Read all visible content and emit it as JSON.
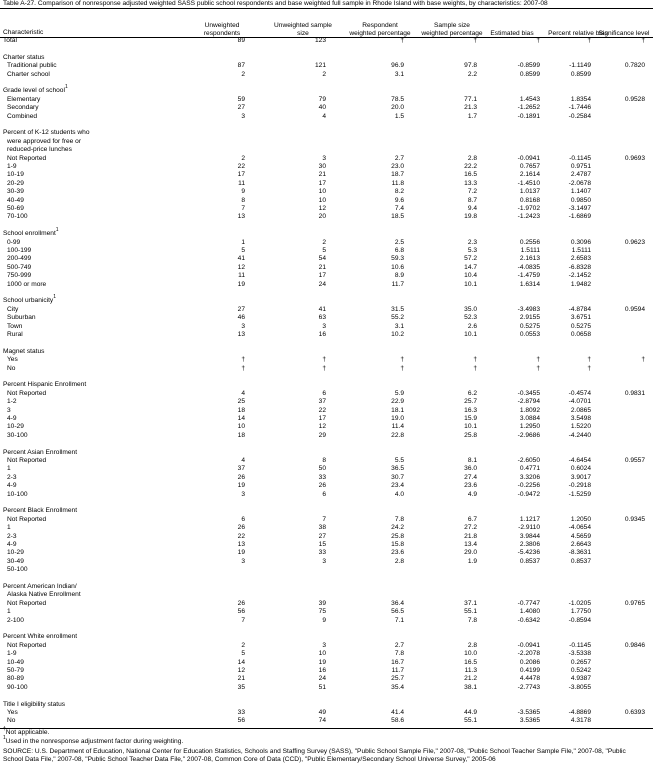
{
  "title": "Table A-27. Comparison of nonresponse adjusted weighted SASS public school respondents and base weighted full sample in Rhode Island with base weights, by characteristics: 2007-08",
  "columns": [
    "Characteristic",
    "Unweighted respondents",
    "Unweighted sample size",
    "Respondent weighted percentage",
    "Sample size weighted percentage",
    "Estimated bias",
    "Percent relative bias",
    "Significance level"
  ],
  "total": {
    "label": "Total",
    "values": [
      "89",
      "123",
      "†",
      "†",
      "†",
      "†",
      "†"
    ]
  },
  "sections": [
    {
      "label": [
        "Charter status"
      ],
      "rows": [
        {
          "label": "Traditional public",
          "values": [
            "87",
            "121",
            "96.9",
            "97.8",
            "-0.8599",
            "-1.1149",
            "0.7820"
          ]
        },
        {
          "label": "Charter school",
          "values": [
            "2",
            "2",
            "3.1",
            "2.2",
            "0.8599",
            "0.8599"
          ]
        }
      ]
    },
    {
      "label": [
        "Grade level of school"
      ],
      "sup": "1",
      "rows": [
        {
          "label": "Elementary",
          "values": [
            "59",
            "79",
            "78.5",
            "77.1",
            "1.4543",
            "1.8354",
            "0.9528"
          ]
        },
        {
          "label": "Secondary",
          "values": [
            "27",
            "40",
            "20.0",
            "21.3",
            "-1.2652",
            "-1.7446"
          ]
        },
        {
          "label": "Combined",
          "values": [
            "3",
            "4",
            "1.5",
            "1.7",
            "-0.1891",
            "-0.2584"
          ]
        }
      ]
    },
    {
      "label": [
        "Percent of K-12 students who",
        "were approved for free or",
        "reduced-price lunches"
      ],
      "rows": [
        {
          "label": "Not Reported",
          "values": [
            "2",
            "3",
            "2.7",
            "2.8",
            "-0.0941",
            "-0.1145",
            "0.9693"
          ]
        },
        {
          "label": "1-9",
          "values": [
            "22",
            "30",
            "23.0",
            "22.2",
            "0.7657",
            "0.9751"
          ]
        },
        {
          "label": "10-19",
          "values": [
            "17",
            "21",
            "18.7",
            "16.5",
            "2.1614",
            "2.4787"
          ]
        },
        {
          "label": "20-29",
          "values": [
            "11",
            "17",
            "11.8",
            "13.3",
            "-1.4510",
            "-2.0678"
          ]
        },
        {
          "label": "30-39",
          "values": [
            "9",
            "10",
            "8.2",
            "7.2",
            "1.0137",
            "1.1407"
          ]
        },
        {
          "label": "40-49",
          "values": [
            "8",
            "10",
            "9.6",
            "8.7",
            "0.8168",
            "0.9850"
          ]
        },
        {
          "label": "50-69",
          "values": [
            "7",
            "12",
            "7.4",
            "9.4",
            "-1.9702",
            "-3.1497"
          ]
        },
        {
          "label": "70-100",
          "values": [
            "13",
            "20",
            "18.5",
            "19.8",
            "-1.2423",
            "-1.6869"
          ]
        }
      ]
    },
    {
      "label": [
        "School enrollment"
      ],
      "sup": "1",
      "rows": [
        {
          "label": "0-99",
          "values": [
            "1",
            "2",
            "2.5",
            "2.3",
            "0.2556",
            "0.3096",
            "0.9623"
          ]
        },
        {
          "label": "100-199",
          "values": [
            "5",
            "5",
            "6.8",
            "5.3",
            "1.5111",
            "1.5111"
          ]
        },
        {
          "label": "200-499",
          "values": [
            "41",
            "54",
            "59.3",
            "57.2",
            "2.1613",
            "2.6583"
          ]
        },
        {
          "label": "500-749",
          "values": [
            "12",
            "21",
            "10.6",
            "14.7",
            "-4.0835",
            "-6.8328"
          ]
        },
        {
          "label": "750-999",
          "values": [
            "11",
            "17",
            "8.9",
            "10.4",
            "-1.4759",
            "-2.1452"
          ]
        },
        {
          "label": "1000 or more",
          "values": [
            "19",
            "24",
            "11.7",
            "10.1",
            "1.6314",
            "1.9482"
          ]
        }
      ]
    },
    {
      "label": [
        "School urbanicity"
      ],
      "sup": "1",
      "rows": [
        {
          "label": "City",
          "values": [
            "27",
            "41",
            "31.5",
            "35.0",
            "-3.4983",
            "-4.8784",
            "0.9594"
          ]
        },
        {
          "label": "Suburban",
          "values": [
            "46",
            "63",
            "55.2",
            "52.3",
            "2.9155",
            "3.6751"
          ]
        },
        {
          "label": "Town",
          "values": [
            "3",
            "3",
            "3.1",
            "2.6",
            "0.5275",
            "0.5275"
          ]
        },
        {
          "label": "Rural",
          "values": [
            "13",
            "16",
            "10.2",
            "10.1",
            "0.0553",
            "0.0658"
          ]
        }
      ]
    },
    {
      "label": [
        "Magnet status"
      ],
      "rows": [
        {
          "label": "Yes",
          "values": [
            "†",
            "†",
            "†",
            "†",
            "†",
            "†",
            "†"
          ]
        },
        {
          "label": "No",
          "values": [
            "†",
            "†",
            "†",
            "†",
            "†",
            "†"
          ]
        }
      ]
    },
    {
      "label": [
        "Percent Hispanic Enrollment"
      ],
      "rows": [
        {
          "label": "Not Reported",
          "values": [
            "4",
            "6",
            "5.9",
            "6.2",
            "-0.3455",
            "-0.4574",
            "0.9831"
          ]
        },
        {
          "label": "1-2",
          "values": [
            "25",
            "37",
            "22.9",
            "25.7",
            "-2.8794",
            "-4.0701"
          ]
        },
        {
          "label": "3",
          "values": [
            "18",
            "22",
            "18.1",
            "16.3",
            "1.8092",
            "2.0865"
          ]
        },
        {
          "label": "4-9",
          "values": [
            "14",
            "17",
            "19.0",
            "15.9",
            "3.0884",
            "3.5498"
          ]
        },
        {
          "label": "10-29",
          "values": [
            "10",
            "12",
            "11.4",
            "10.1",
            "1.2950",
            "1.5220"
          ]
        },
        {
          "label": "30-100",
          "values": [
            "18",
            "29",
            "22.8",
            "25.8",
            "-2.9686",
            "-4.2440"
          ]
        }
      ]
    },
    {
      "label": [
        "Percent Asian Enrollment"
      ],
      "rows": [
        {
          "label": "Not Reported",
          "values": [
            "4",
            "8",
            "5.5",
            "8.1",
            "-2.6050",
            "-4.6454",
            "0.9557"
          ]
        },
        {
          "label": "1",
          "values": [
            "37",
            "50",
            "36.5",
            "36.0",
            "0.4771",
            "0.6024"
          ]
        },
        {
          "label": "2-3",
          "values": [
            "26",
            "33",
            "30.7",
            "27.4",
            "3.3206",
            "3.9017"
          ]
        },
        {
          "label": "4-9",
          "values": [
            "19",
            "26",
            "23.4",
            "23.6",
            "-0.2256",
            "-0.2918"
          ]
        },
        {
          "label": "10-100",
          "values": [
            "3",
            "6",
            "4.0",
            "4.9",
            "-0.9472",
            "-1.5259"
          ]
        }
      ]
    },
    {
      "label": [
        "Percent Black Enrollment"
      ],
      "rows": [
        {
          "label": "Not Reported",
          "values": [
            "6",
            "7",
            "7.8",
            "6.7",
            "1.1217",
            "1.2050",
            "0.9345"
          ]
        },
        {
          "label": "1",
          "values": [
            "26",
            "38",
            "24.2",
            "27.2",
            "-2.9110",
            "-4.0654"
          ]
        },
        {
          "label": "2-3",
          "values": [
            "22",
            "27",
            "25.8",
            "21.8",
            "3.9844",
            "4.5659"
          ]
        },
        {
          "label": "4-9",
          "values": [
            "13",
            "15",
            "15.8",
            "13.4",
            "2.3806",
            "2.6643"
          ]
        },
        {
          "label": "10-29",
          "values": [
            "19",
            "33",
            "23.6",
            "29.0",
            "-5.4236",
            "-8.3631"
          ]
        },
        {
          "label": "30-49",
          "values": [
            "3",
            "3",
            "2.8",
            "1.9",
            "0.8537",
            "0.8537"
          ]
        },
        {
          "label": "50-100",
          "values": []
        }
      ]
    },
    {
      "label": [
        "Percent American Indian/",
        "Alaska Native Enrollment"
      ],
      "rows": [
        {
          "label": "Not Reported",
          "values": [
            "26",
            "39",
            "36.4",
            "37.1",
            "-0.7747",
            "-1.0205",
            "0.9765"
          ]
        },
        {
          "label": "1",
          "values": [
            "56",
            "75",
            "56.5",
            "55.1",
            "1.4080",
            "1.7750"
          ]
        },
        {
          "label": "2-100",
          "values": [
            "7",
            "9",
            "7.1",
            "7.8",
            "-0.6342",
            "-0.8594"
          ]
        }
      ]
    },
    {
      "label": [
        "Percent White enrollment"
      ],
      "rows": [
        {
          "label": "Not Reported",
          "values": [
            "2",
            "3",
            "2.7",
            "2.8",
            "-0.0941",
            "-0.1145",
            "0.9846"
          ]
        },
        {
          "label": "1-9",
          "values": [
            "5",
            "10",
            "7.8",
            "10.0",
            "-2.2078",
            "-3.5338"
          ]
        },
        {
          "label": "10-49",
          "values": [
            "14",
            "19",
            "16.7",
            "16.5",
            "0.2086",
            "0.2657"
          ]
        },
        {
          "label": "50-79",
          "values": [
            "12",
            "16",
            "11.7",
            "11.3",
            "0.4199",
            "0.5242"
          ]
        },
        {
          "label": "80-89",
          "values": [
            "21",
            "24",
            "25.7",
            "21.2",
            "4.4478",
            "4.9387"
          ]
        },
        {
          "label": "90-100",
          "values": [
            "35",
            "51",
            "35.4",
            "38.1",
            "-2.7743",
            "-3.8055"
          ]
        }
      ]
    },
    {
      "label": [
        "Title I eligibility status"
      ],
      "rows": [
        {
          "label": "Yes",
          "values": [
            "33",
            "49",
            "41.4",
            "44.9",
            "-3.5365",
            "-4.8869",
            "0.6393"
          ]
        },
        {
          "label": "No",
          "values": [
            "56",
            "74",
            "58.6",
            "55.1",
            "3.5365",
            "4.3178"
          ]
        }
      ]
    }
  ],
  "footnotes": [
    {
      "mark": "†",
      "text": "Not applicable."
    },
    {
      "mark": "1",
      "text": "Used in the nonresponse adjustment factor during weighting."
    },
    {
      "text": "SOURCE: U.S. Department of Education, National Center for Education Statistics, Schools and Staffing Survey (SASS), \"Public School Sample File,\" 2007-08, \"Public School Teacher Sample File,\" 2007-08, \"Public School Data File,\" 2007-08, \"Public School Teacher Data File,\" 2007-08, Common Core of Data (CCD), \"Public Elementary/Secondary School Universe Survey,\" 2005-06"
    }
  ]
}
